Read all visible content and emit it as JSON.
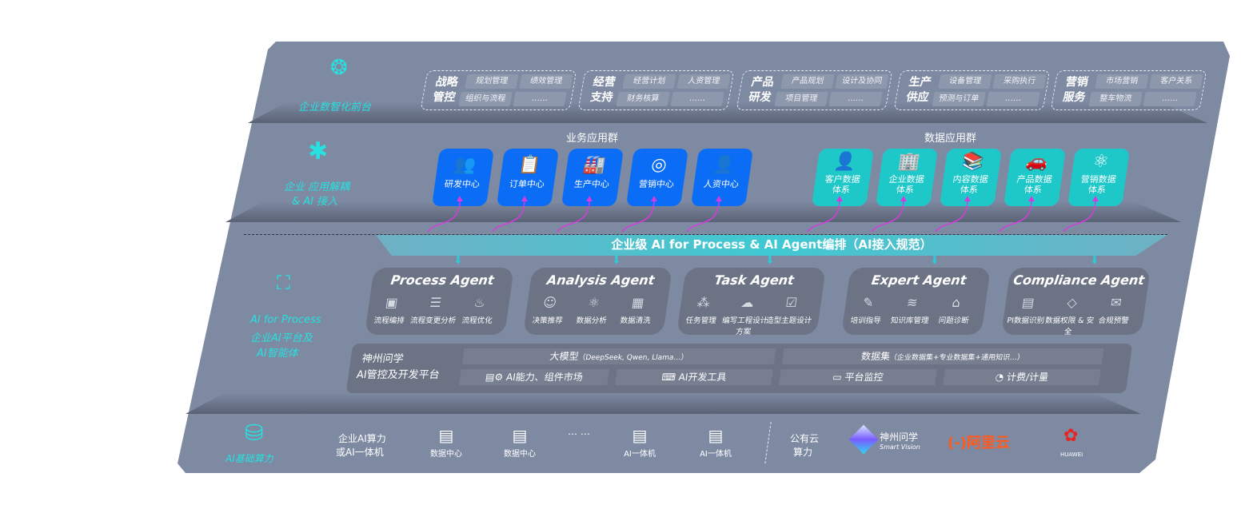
{
  "layers": {
    "front": {
      "label": "企业数智化前台",
      "icon": "brain-icon",
      "groups": [
        {
          "title": "战略管控",
          "items": [
            "规划管理",
            "绩效管理",
            "组织与流程",
            "……"
          ]
        },
        {
          "title": "经营支持",
          "items": [
            "经营计划",
            "人资管理",
            "财务核算",
            "……"
          ]
        },
        {
          "title": "产品研发",
          "items": [
            "产品规划",
            "设计及协同",
            "项目管理",
            "……"
          ]
        },
        {
          "title": "生产供应",
          "items": [
            "设备管理",
            "采购执行",
            "预测与订单",
            "……"
          ]
        },
        {
          "title": "营销服务",
          "items": [
            "市场营销",
            "客户关系",
            "整车物流",
            "……"
          ]
        }
      ]
    },
    "apps": {
      "label_line1": "企业 应用解耦",
      "label_line2": "& AI 接入",
      "icon": "molecule-icon",
      "business_title": "业务应用群",
      "data_title": "数据应用群",
      "business": [
        {
          "label": "研发中心",
          "icon": "users-icon"
        },
        {
          "label": "订单中心",
          "icon": "clipboard-icon"
        },
        {
          "label": "生产中心",
          "icon": "factory-icon"
        },
        {
          "label": "营销中心",
          "icon": "target-icon"
        },
        {
          "label": "人资中心",
          "icon": "person-icon"
        }
      ],
      "data": [
        {
          "l1": "客户数据",
          "l2": "体系",
          "icon": "person-icon"
        },
        {
          "l1": "企业数据",
          "l2": "体系",
          "icon": "building-icon"
        },
        {
          "l1": "内容数据",
          "l2": "体系",
          "icon": "books-icon"
        },
        {
          "l1": "产品数据",
          "l2": "体系",
          "icon": "car-icon"
        },
        {
          "l1": "营销数据",
          "l2": "体系",
          "icon": "atom-icon"
        }
      ]
    },
    "ai": {
      "label_line1": "AI for Process",
      "label_line2": "企业AI平台及",
      "label_line3": "AI智能体",
      "icon": "face-scan-icon",
      "orchestration": "企业级 AI for Process & AI Agent编排（AI接入规范）",
      "agents": [
        {
          "title": "Process Agent",
          "items": [
            "流程编排",
            "流程变更分析",
            "流程优化"
          ]
        },
        {
          "title": "Analysis Agent",
          "items": [
            "决策推荐",
            "数据分析",
            "数据清洗"
          ]
        },
        {
          "title": "Task Agent",
          "items": [
            "任务管理",
            "编写工程设计方案",
            "造型主题设计"
          ]
        },
        {
          "title": "Expert Agent",
          "items": [
            "培训指导",
            "知识库管理",
            "问题诊断"
          ]
        },
        {
          "title": "Compliance Agent",
          "items": [
            "PI数据识别",
            "数据权限 & 安全",
            "合规预警"
          ]
        }
      ],
      "platform": {
        "title_line1": "神州问学",
        "title_line2": "AI管控及开发平台",
        "models": "大模型",
        "models_note": "（DeepSeek, Qwen, Llama…）",
        "datasets": "数据集",
        "datasets_note": "（企业数据集+专业数据集+通用知识…）",
        "market": "AI能力、组件市场",
        "devtools": "AI开发工具",
        "monitor": "平台监控",
        "billing": "计费/计量"
      }
    },
    "infra": {
      "label": "AI基础算力",
      "icon": "database-icon",
      "onprem_line1": "企业AI算力",
      "onprem_line2": "或AI一体机",
      "servers": [
        "数据中心",
        "数据中心",
        "AI一体机",
        "AI一体机"
      ],
      "ellipsis": "… …",
      "cloud_line1": "公有云",
      "cloud_line2": "算力",
      "vendors": {
        "sv_cn": "神州问学",
        "sv_en": "Smart Vision",
        "aliyun": "阿里云",
        "aliyun_mark": "(-)",
        "huawei": "HUAWEI"
      }
    }
  },
  "colors": {
    "panel": "#7e8aa2",
    "cyan": "#27e0e0",
    "blue": "#0b6cf5",
    "teal": "#1ec8c8",
    "magenta": "#d63be0",
    "aliyun": "#ff5a1f",
    "huawei": "#e8231f"
  }
}
